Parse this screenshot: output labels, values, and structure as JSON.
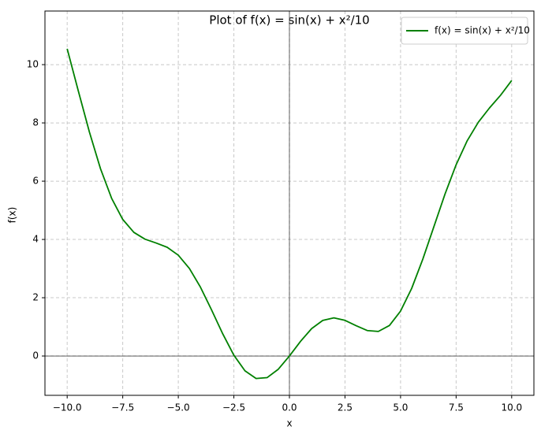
{
  "chart_data": {
    "type": "line",
    "title": "Plot of f(x) = sin(x) + x²/10",
    "x_label": "x",
    "y_label": "f(x)",
    "x": [
      -10,
      -9.5,
      -9,
      -8.5,
      -8,
      -7.5,
      -7,
      -6.5,
      -6,
      -5.5,
      -5,
      -4.5,
      -4,
      -3.5,
      -3,
      -2.5,
      -2,
      -1.5,
      -1,
      -0.5,
      0,
      0.5,
      1,
      1.5,
      2,
      2.5,
      3,
      3.5,
      4,
      4.5,
      5,
      5.5,
      6,
      6.5,
      7,
      7.5,
      8,
      8.5,
      9,
      9.5,
      10
    ],
    "series": [
      {
        "name": "f(x) = sin(x) + x²/10",
        "color": "#008000",
        "values": [
          10.544,
          9.1,
          7.688,
          6.426,
          5.411,
          4.687,
          4.243,
          4.01,
          3.879,
          3.731,
          3.459,
          3.003,
          2.357,
          1.576,
          0.759,
          0.027,
          -0.509,
          -0.772,
          -0.741,
          -0.454,
          0,
          0.504,
          0.941,
          1.222,
          1.309,
          1.223,
          1.041,
          0.874,
          0.843,
          1.047,
          1.541,
          2.319,
          3.321,
          4.44,
          5.557,
          6.563,
          7.389,
          8.023,
          8.512,
          8.95,
          9.456
        ]
      }
    ],
    "xlim": [
      -11.0,
      11.0
    ],
    "ylim": [
      -1.35,
      11.84
    ],
    "xticks": [
      {
        "value": -10,
        "label": "−10.0"
      },
      {
        "value": -7.5,
        "label": "−7.5"
      },
      {
        "value": -5,
        "label": "−5.0"
      },
      {
        "value": -2.5,
        "label": "−2.5"
      },
      {
        "value": 0,
        "label": "0.0"
      },
      {
        "value": 2.5,
        "label": "2.5"
      },
      {
        "value": 5,
        "label": "5.0"
      },
      {
        "value": 7.5,
        "label": "7.5"
      },
      {
        "value": 10,
        "label": "10.0"
      }
    ],
    "yticks": [
      0,
      2,
      4,
      6,
      8,
      10
    ],
    "grid": true,
    "legend": "upper right"
  }
}
